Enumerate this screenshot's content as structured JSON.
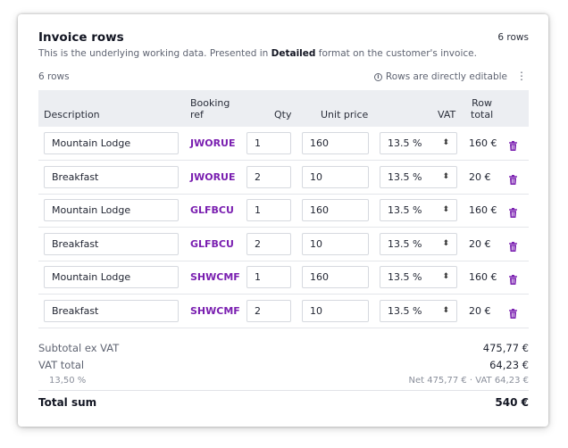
{
  "header": {
    "title": "Invoice rows",
    "count_badge": "6 rows",
    "subtitle_prefix": "This is the underlying working data. Presented in ",
    "subtitle_bold": "Detailed",
    "subtitle_suffix": " format on the customer's invoice.",
    "rows_label": "6 rows",
    "editable_note": "Rows are directly editable"
  },
  "columns": {
    "description": "Description",
    "booking_ref_1": "Booking",
    "booking_ref_2": "ref",
    "qty": "Qty",
    "unit_price": "Unit price",
    "vat": "VAT",
    "row_total_1": "Row",
    "row_total_2": "total"
  },
  "rows": [
    {
      "description": "Mountain Lodge",
      "ref": "JWORUE",
      "qty": "1",
      "price": "160",
      "vat": "13.5 %",
      "total": "160 €"
    },
    {
      "description": "Breakfast",
      "ref": "JWORUE",
      "qty": "2",
      "price": "10",
      "vat": "13.5 %",
      "total": "20 €"
    },
    {
      "description": "Mountain Lodge",
      "ref": "GLFBCU",
      "qty": "1",
      "price": "160",
      "vat": "13.5 %",
      "total": "160 €"
    },
    {
      "description": "Breakfast",
      "ref": "GLFBCU",
      "qty": "2",
      "price": "10",
      "vat": "13.5 %",
      "total": "20 €"
    },
    {
      "description": "Mountain Lodge",
      "ref": "SHWCMF",
      "qty": "1",
      "price": "160",
      "vat": "13.5 %",
      "total": "160 €"
    },
    {
      "description": "Breakfast",
      "ref": "SHWCMF",
      "qty": "2",
      "price": "10",
      "vat": "13.5 %",
      "total": "20 €"
    }
  ],
  "summary": {
    "subtotal_label": "Subtotal ex VAT",
    "subtotal_value": "475,77 €",
    "vat_label": "VAT total",
    "vat_value": "64,23 €",
    "vat_rate_label": "13,50 %",
    "vat_rate_detail": "Net 475,77 € · VAT 64,23 €",
    "total_label": "Total sum",
    "total_value": "540 €"
  },
  "colors": {
    "accent": "#7a1fb0",
    "header_bg": "#eceef2"
  }
}
